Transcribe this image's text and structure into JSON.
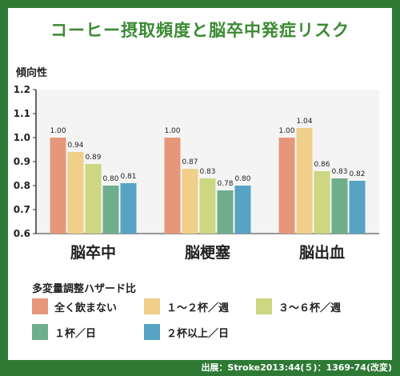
{
  "title": "コーヒー摂取頻度と脳卒中発症リスク",
  "source": "出展：Stroke2013:44(５)：1369-74(改変)",
  "chart_data": {
    "type": "bar",
    "ylabel": "傾向性",
    "ylim": [
      0.6,
      1.2
    ],
    "yticks": [
      "0.6",
      "0.7",
      "0.8",
      "0.9",
      "1.0",
      "1.1",
      "1.2"
    ],
    "categories": [
      "脳卒中",
      "脳梗塞",
      "脳出血"
    ],
    "legend_title": "多変量調整ハザード比",
    "series": [
      {
        "name": "全く飲まない",
        "color": "#e6977a",
        "values": [
          1.0,
          1.0,
          1.0
        ]
      },
      {
        "name": "１～２杯／週",
        "color": "#f0cf8a",
        "values": [
          0.94,
          0.87,
          1.04
        ]
      },
      {
        "name": "３～６杯／週",
        "color": "#cdd680",
        "values": [
          0.89,
          0.83,
          0.86
        ]
      },
      {
        "name": "１杯／日",
        "color": "#6fae8c",
        "values": [
          0.8,
          0.78,
          0.83
        ]
      },
      {
        "name": "２杯以上／日",
        "color": "#56a3c4",
        "values": [
          0.81,
          0.8,
          0.82
        ]
      }
    ],
    "value_labels": [
      [
        "1.00",
        "0.94",
        "0.89",
        "0.80",
        "0.81"
      ],
      [
        "1.00",
        "0.87",
        "0.83",
        "0.78",
        "0.80"
      ],
      [
        "1.00",
        "1.04",
        "0.86",
        "0.83",
        "0.82"
      ]
    ]
  }
}
